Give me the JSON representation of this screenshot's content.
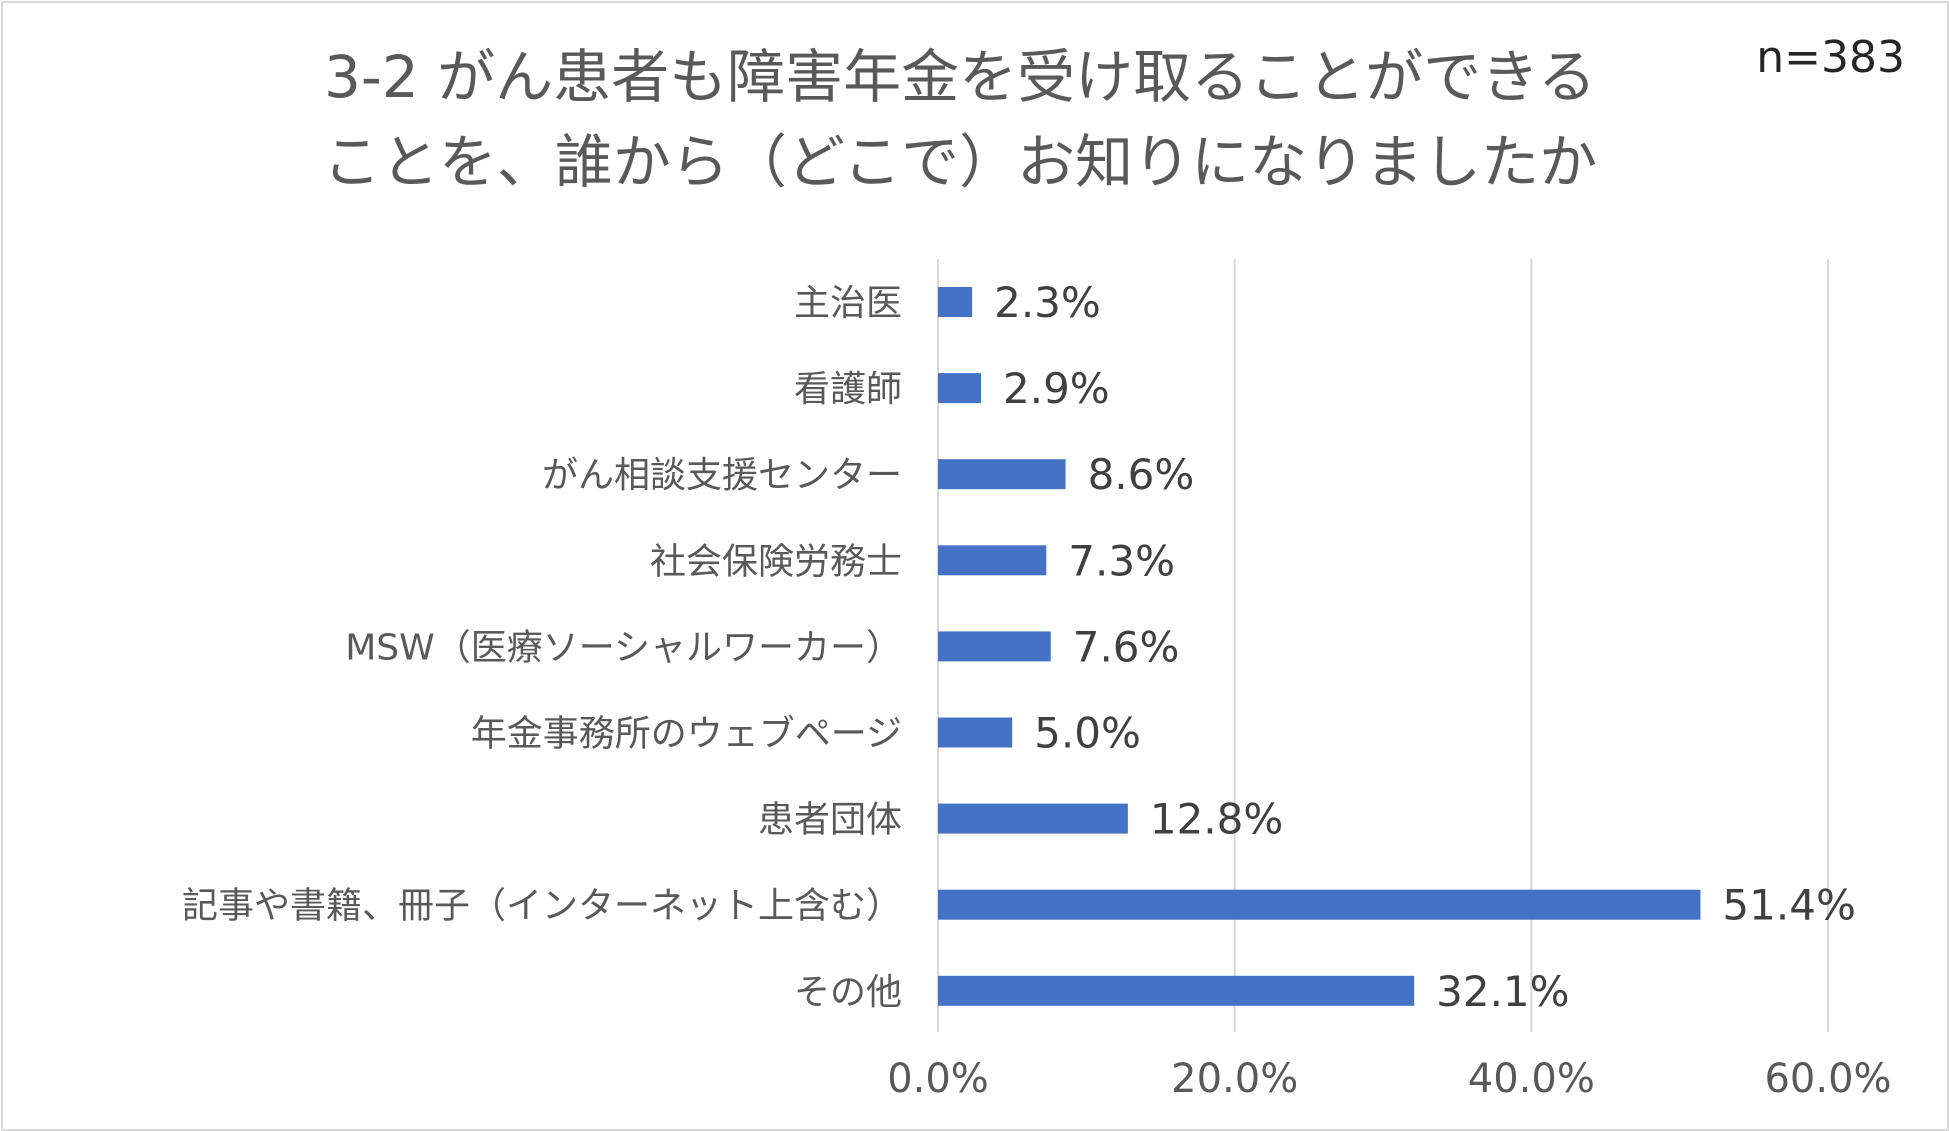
{
  "chart_data": {
    "type": "bar",
    "orientation": "horizontal",
    "title_lines": [
      "3-2 がん患者も障害年金を受け取ることができる",
      "ことを、誰から（どこで）お知りになりましたか"
    ],
    "annotation": "n=383",
    "categories": [
      "主治医",
      "看護師",
      "がん相談支援センター",
      "社会保険労務士",
      "MSW（医療ソーシャルワーカー）",
      "年金事務所のウェブページ",
      "患者団体",
      "記事や書籍、冊子（インターネット上含む）",
      "その他"
    ],
    "values": [
      2.3,
      2.9,
      8.6,
      7.3,
      7.6,
      5.0,
      12.8,
      51.4,
      32.1
    ],
    "data_labels": [
      "2.3%",
      "2.9%",
      "8.6%",
      "7.3%",
      "7.6%",
      "5.0%",
      "12.8%",
      "51.4%",
      "32.1%"
    ],
    "x_ticks": [
      "0.0%",
      "20.0%",
      "40.0%",
      "60.0%"
    ],
    "xlim": [
      0,
      60
    ],
    "grid": "vertical",
    "legend": "none",
    "bar_color": "#4472c4"
  }
}
